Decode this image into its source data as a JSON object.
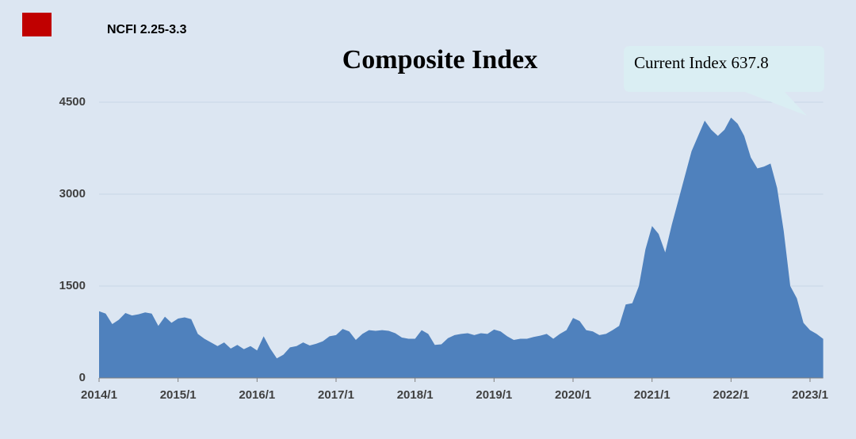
{
  "chart_data": {
    "type": "area",
    "title": "Composite Index",
    "annotation": "Current Index 637.8",
    "legend_marker_color": "#c00000",
    "x": [
      "2014/1",
      "2014/2",
      "2014/3",
      "2014/4",
      "2014/5",
      "2014/6",
      "2014/7",
      "2014/8",
      "2014/9",
      "2014/10",
      "2014/11",
      "2014/12",
      "2015/1",
      "2015/2",
      "2015/3",
      "2015/4",
      "2015/5",
      "2015/6",
      "2015/7",
      "2015/8",
      "2015/9",
      "2015/10",
      "2015/11",
      "2015/12",
      "2016/1",
      "2016/2",
      "2016/3",
      "2016/4",
      "2016/5",
      "2016/6",
      "2016/7",
      "2016/8",
      "2016/9",
      "2016/10",
      "2016/11",
      "2016/12",
      "2017/1",
      "2017/2",
      "2017/3",
      "2017/4",
      "2017/5",
      "2017/6",
      "2017/7",
      "2017/8",
      "2017/9",
      "2017/10",
      "2017/11",
      "2017/12",
      "2018/1",
      "2018/2",
      "2018/3",
      "2018/4",
      "2018/5",
      "2018/6",
      "2018/7",
      "2018/8",
      "2018/9",
      "2018/10",
      "2018/11",
      "2018/12",
      "2019/1",
      "2019/2",
      "2019/3",
      "2019/4",
      "2019/5",
      "2019/6",
      "2019/7",
      "2019/8",
      "2019/9",
      "2019/10",
      "2019/11",
      "2019/12",
      "2020/1",
      "2020/2",
      "2020/3",
      "2020/4",
      "2020/5",
      "2020/6",
      "2020/7",
      "2020/8",
      "2020/9",
      "2020/10",
      "2020/11",
      "2020/12",
      "2021/1",
      "2021/2",
      "2021/3",
      "2021/4",
      "2021/5",
      "2021/6",
      "2021/7",
      "2021/8",
      "2021/9",
      "2021/10",
      "2021/11",
      "2021/12",
      "2022/1",
      "2022/2",
      "2022/3",
      "2022/4",
      "2022/5",
      "2022/6",
      "2022/7",
      "2022/8",
      "2022/9",
      "2022/10",
      "2022/11",
      "2022/12",
      "2023/1",
      "2023/2",
      "2023/3"
    ],
    "series": [
      {
        "name": "NCFI 2.25-3.3",
        "color": "#4f81bd",
        "values": [
          1090,
          1050,
          880,
          950,
          1060,
          1020,
          1040,
          1070,
          1050,
          850,
          1000,
          900,
          970,
          990,
          960,
          720,
          640,
          580,
          520,
          580,
          480,
          540,
          470,
          520,
          450,
          680,
          480,
          320,
          380,
          500,
          520,
          580,
          530,
          560,
          600,
          680,
          700,
          800,
          760,
          620,
          720,
          780,
          770,
          780,
          770,
          730,
          660,
          640,
          640,
          780,
          720,
          540,
          550,
          650,
          700,
          720,
          730,
          700,
          730,
          720,
          790,
          760,
          680,
          620,
          640,
          640,
          670,
          690,
          720,
          640,
          720,
          780,
          980,
          930,
          780,
          760,
          700,
          720,
          780,
          850,
          1200,
          1220,
          1500,
          2100,
          2480,
          2350,
          2050,
          2500,
          2900,
          3300,
          3700,
          3950,
          4200,
          4050,
          3950,
          4050,
          4250,
          4150,
          3950,
          3600,
          3420,
          3450,
          3500,
          3100,
          2400,
          1500,
          1300,
          900,
          780,
          720,
          637.8
        ]
      }
    ],
    "xticks": [
      "2014/1",
      "2015/1",
      "2016/1",
      "2017/1",
      "2018/1",
      "2019/1",
      "2020/1",
      "2021/1",
      "2022/1",
      "2023/1"
    ],
    "ylim": [
      0,
      4500
    ],
    "yticks": [
      0,
      1500,
      3000,
      4500
    ],
    "grid": true
  }
}
